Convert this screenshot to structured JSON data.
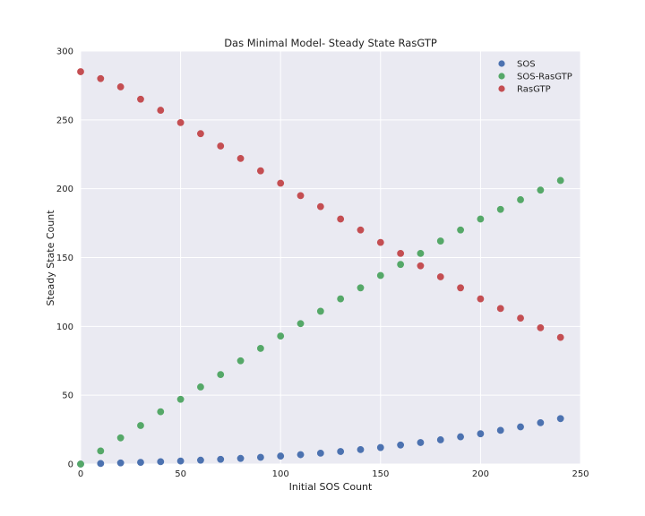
{
  "colors": {
    "background": "#eaeaf2",
    "grid": "#ffffff",
    "SOS": "#4c72b0",
    "SOS-RasGTP": "#55a868",
    "RasGTP": "#c44e52"
  },
  "chart_data": {
    "type": "scatter",
    "title": "Das Minimal Model- Steady State RasGTP",
    "xlabel": "Initial SOS Count",
    "ylabel": "Steady State Count",
    "xlim": [
      0,
      250
    ],
    "ylim": [
      0,
      300
    ],
    "xticks": [
      "0",
      "50",
      "100",
      "150",
      "200",
      "250"
    ],
    "yticks": [
      "0",
      "50",
      "100",
      "150",
      "200",
      "250",
      "300"
    ],
    "grid": true,
    "legend_position": "top-right",
    "x": [
      0,
      10,
      20,
      30,
      40,
      50,
      60,
      70,
      80,
      90,
      100,
      110,
      120,
      130,
      140,
      150,
      160,
      170,
      180,
      190,
      200,
      210,
      220,
      230,
      240
    ],
    "series": [
      {
        "name": "SOS",
        "values": [
          0,
          0.4,
          0.8,
          1.2,
          1.7,
          2.2,
          2.8,
          3.4,
          4.1,
          4.9,
          5.8,
          6.8,
          7.9,
          9.1,
          10.5,
          12.0,
          13.8,
          15.6,
          17.6,
          19.8,
          22.0,
          24.5,
          27.0,
          30.0,
          33.0
        ]
      },
      {
        "name": "SOS-RasGTP",
        "values": [
          0,
          9.5,
          19,
          28,
          38,
          47,
          56,
          65,
          75,
          84,
          93,
          102,
          111,
          120,
          128,
          137,
          145,
          153,
          162,
          170,
          178,
          185,
          192,
          199,
          206
        ]
      },
      {
        "name": "RasGTP",
        "values": [
          285,
          280,
          274,
          265,
          257,
          248,
          240,
          231,
          222,
          213,
          204,
          195,
          187,
          178,
          170,
          161,
          153,
          144,
          136,
          128,
          120,
          113,
          106,
          99,
          92
        ]
      }
    ]
  }
}
